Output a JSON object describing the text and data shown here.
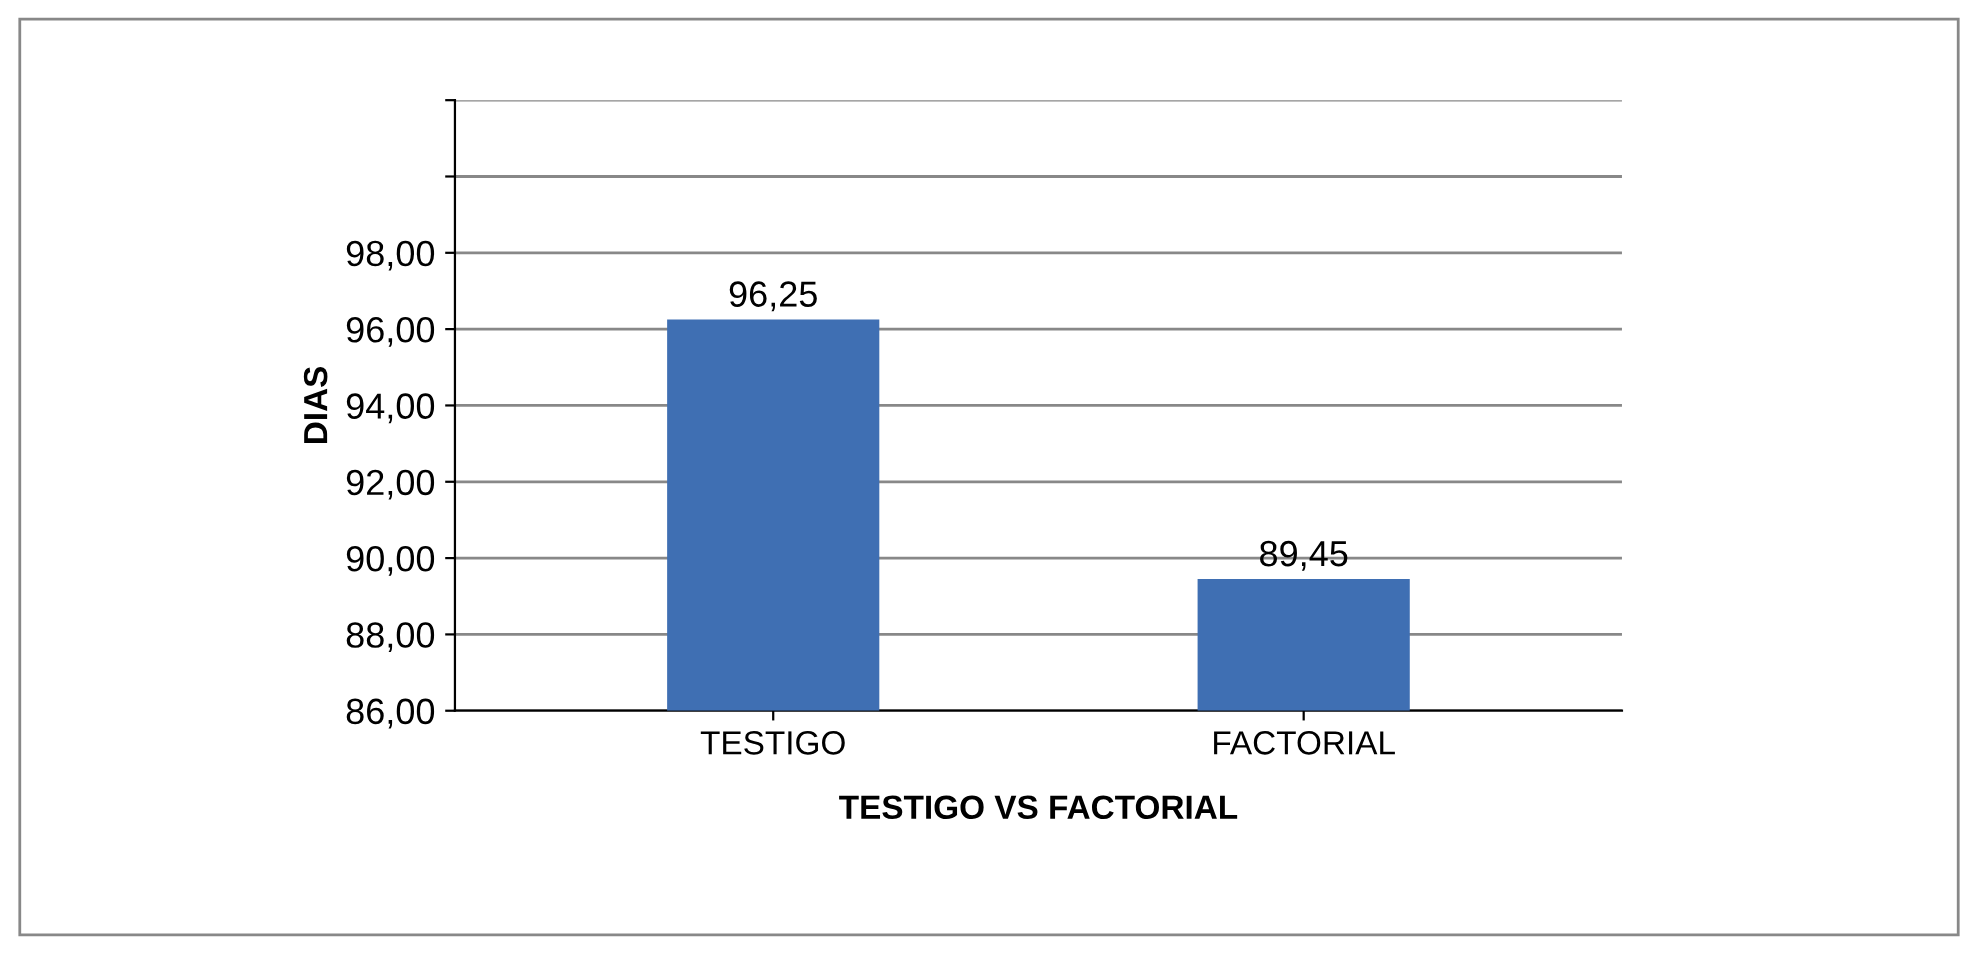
{
  "chart_data": {
    "type": "bar",
    "xlabel": "TESTIGO VS FACTORIAL",
    "ylabel": "DIAS",
    "categories": [
      "TESTIGO",
      "FACTORIAL"
    ],
    "values": [
      96.25,
      89.45
    ],
    "value_labels": [
      "96,25",
      "89,45"
    ],
    "color": "#3f6fb3",
    "ylim": [
      86,
      102
    ],
    "yticks": [
      {
        "value": 86,
        "label": "86,00"
      },
      {
        "value": 88,
        "label": "88,00"
      },
      {
        "value": 90,
        "label": "90,00"
      },
      {
        "value": 92,
        "label": "92,00"
      },
      {
        "value": 94,
        "label": "94,00"
      },
      {
        "value": 96,
        "label": "96,00"
      },
      {
        "value": 98,
        "label": "98,00"
      },
      {
        "value": 100,
        "label": null
      },
      {
        "value": 102,
        "label": null
      }
    ],
    "grid": "y"
  }
}
